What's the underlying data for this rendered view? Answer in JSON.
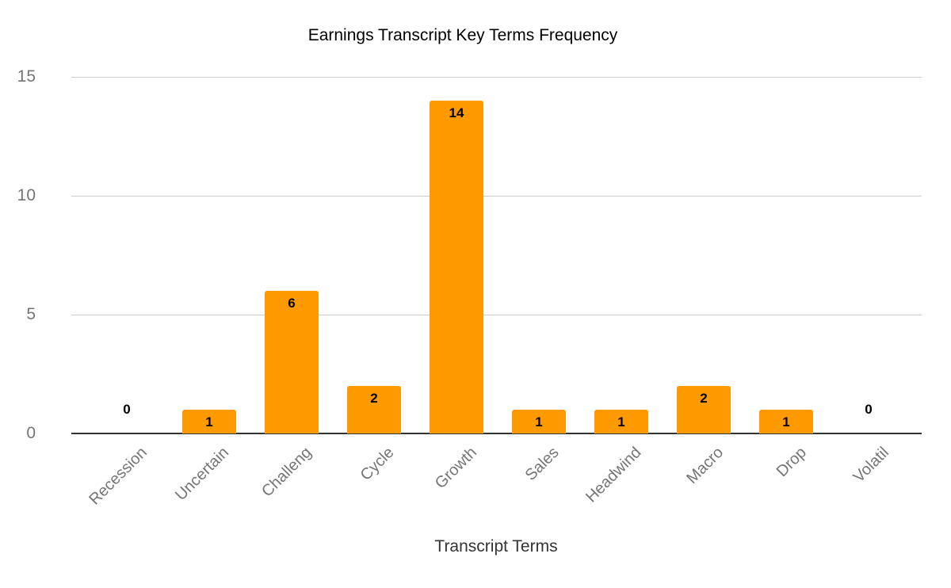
{
  "chart_data": {
    "type": "bar",
    "title": "Earnings Transcript Key Terms Frequency",
    "xlabel": "Transcript Terms",
    "ylabel": "",
    "categories": [
      "Recession",
      "Uncertain",
      "Challeng",
      "Cycle",
      "Growth",
      "Sales",
      "Headwind",
      "Macro",
      "Drop",
      "Volatil"
    ],
    "values": [
      0,
      1,
      6,
      2,
      14,
      1,
      1,
      2,
      1,
      0
    ],
    "ylim": [
      0,
      15
    ],
    "yticks": [
      0,
      5,
      10,
      15
    ],
    "grid": true,
    "legend": "none",
    "data_labels": true,
    "bar_color": "#ff9900"
  }
}
